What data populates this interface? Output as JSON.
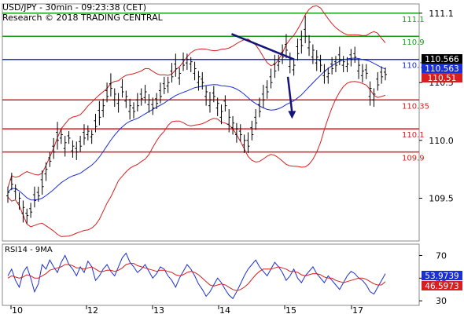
{
  "header": {
    "title": "USD/JPY - 30min - 09:23:38 (CET)",
    "copyright": "Research © 2018 TRADING CENTRAL"
  },
  "chart_data": [
    {
      "type": "line",
      "title": "",
      "ylim": [
        109.13,
        111.18
      ],
      "x_ticks": [
        "10",
        "12",
        "13",
        "14",
        "15",
        "17"
      ],
      "y_ticks": [
        {
          "value": 111.1,
          "label": "111.1"
        },
        {
          "value": 110.5,
          "label": "110.5"
        },
        {
          "value": 110.0,
          "label": "110.0"
        },
        {
          "value": 109.5,
          "label": "109.5"
        }
      ],
      "levels": [
        {
          "value": 111.1,
          "label": "111.1",
          "color": "#1a9e1a"
        },
        {
          "value": 110.9,
          "label": "110.9",
          "color": "#1a9e1a"
        },
        {
          "value": 110.7,
          "label": "110.7",
          "color": "#1a2fd6"
        },
        {
          "value": 110.35,
          "label": "110.35",
          "color": "#d81e1e"
        },
        {
          "value": 110.1,
          "label": "110.1",
          "color": "#d81e1e"
        },
        {
          "value": 109.9,
          "label": "109.9",
          "color": "#d81e1e"
        }
      ],
      "price_tags": [
        {
          "value": 110.566,
          "label": "110.566",
          "bg": "#000000",
          "fg": "#ffffff"
        },
        {
          "value": 110.563,
          "label": "110.563",
          "bg": "#1a2fd6",
          "fg": "#ffffff"
        },
        {
          "value": 110.51,
          "label": "110.51",
          "bg": "#d81e1e",
          "fg": "#ffffff"
        }
      ],
      "series": [
        {
          "style": "ohlc",
          "color": "#000000",
          "close": [
            109.55,
            109.62,
            109.58,
            109.5,
            109.42,
            109.35,
            109.38,
            109.48,
            109.52,
            109.6,
            109.75,
            109.82,
            109.9,
            110.0,
            110.05,
            109.98,
            110.02,
            109.95,
            109.9,
            109.95,
            110.02,
            110.08,
            110.05,
            110.12,
            110.2,
            110.3,
            110.38,
            110.45,
            110.4,
            110.35,
            110.42,
            110.38,
            110.3,
            110.25,
            110.3,
            110.36,
            110.42,
            110.35,
            110.28,
            110.32,
            110.38,
            110.45,
            110.5,
            110.55,
            110.62,
            110.58,
            110.65,
            110.7,
            110.68,
            110.62,
            110.55,
            110.5,
            110.42,
            110.35,
            110.38,
            110.32,
            110.25,
            110.3,
            110.2,
            110.15,
            110.1,
            110.05,
            110.0,
            109.95,
            110.05,
            110.15,
            110.25,
            110.35,
            110.42,
            110.5,
            110.6,
            110.68,
            110.72,
            110.78,
            110.7,
            110.65,
            110.75,
            110.82,
            110.9,
            110.85,
            110.78,
            110.72,
            110.65,
            110.6,
            110.58,
            110.62,
            110.65,
            110.7,
            110.68,
            110.66,
            110.7,
            110.72,
            110.65,
            110.6,
            110.58,
            110.45,
            110.4,
            110.48,
            110.55,
            110.57
          ],
          "open_offset": [
            -0.03,
            0.04,
            -0.02,
            -0.04,
            -0.05,
            0.02,
            0.03,
            0.05,
            0.03,
            0.06,
            -0.04,
            0.03,
            0.05,
            0.07,
            -0.03,
            -0.05,
            0.02,
            -0.04,
            0.03,
            0.04,
            0.05,
            -0.03,
            -0.02,
            0.05,
            0.06,
            -0.04,
            0.05,
            0.04,
            -0.05,
            -0.03,
            0.04,
            -0.04,
            -0.05,
            0.03,
            0.05,
            0.04,
            -0.05,
            -0.04,
            0.03,
            0.04,
            0.05,
            0.04,
            -0.03,
            0.05,
            0.04,
            -0.04,
            0.05,
            -0.03,
            -0.02,
            -0.04,
            -0.05,
            0.03,
            -0.04,
            -0.05,
            0.03,
            -0.04,
            -0.05,
            0.04,
            -0.06,
            -0.04,
            -0.05,
            0.03,
            -0.04,
            0.05,
            0.06,
            0.05,
            0.06,
            0.05,
            0.04,
            0.05,
            0.06,
            -0.03,
            0.04,
            0.05,
            -0.06,
            -0.04,
            0.06,
            0.05,
            0.06,
            -0.05,
            -0.06,
            -0.05,
            0.04,
            -0.04,
            -0.03,
            0.04,
            0.03,
            0.04,
            -0.03,
            -0.02,
            0.04,
            0.03,
            -0.05,
            -0.04,
            0.03,
            -0.07,
            -0.05,
            0.05,
            0.04,
            0.02
          ],
          "range_above": [
            0.05,
            0.06,
            0.04,
            0.05,
            0.06,
            0.04,
            0.05,
            0.07,
            0.05,
            0.08,
            0.06,
            0.05,
            0.07,
            0.09,
            0.05,
            0.06,
            0.04,
            0.05,
            0.06,
            0.05,
            0.07,
            0.05,
            0.04,
            0.06,
            0.08,
            0.06,
            0.07,
            0.09,
            0.05,
            0.06,
            0.07,
            0.05,
            0.06,
            0.05,
            0.06,
            0.05,
            0.06,
            0.05,
            0.06,
            0.05,
            0.07,
            0.06,
            0.05,
            0.07,
            0.09,
            0.05,
            0.06,
            0.05,
            0.04,
            0.06,
            0.05,
            0.06,
            0.05,
            0.07,
            0.06,
            0.05,
            0.06,
            0.05,
            0.07,
            0.06,
            0.05,
            0.06,
            0.05,
            0.07,
            0.06,
            0.07,
            0.06,
            0.08,
            0.06,
            0.07,
            0.08,
            0.06,
            0.07,
            0.09,
            0.06,
            0.05,
            0.07,
            0.08,
            0.12,
            0.06,
            0.05,
            0.06,
            0.05,
            0.06,
            0.05,
            0.06,
            0.05,
            0.07,
            0.05,
            0.06,
            0.05,
            0.06,
            0.05,
            0.06,
            0.05,
            0.06,
            0.05,
            0.06,
            0.05,
            0.04
          ],
          "range_below": [
            0.06,
            0.05,
            0.07,
            0.06,
            0.08,
            0.07,
            0.05,
            0.06,
            0.05,
            0.07,
            0.06,
            0.05,
            0.06,
            0.08,
            0.05,
            0.07,
            0.05,
            0.06,
            0.07,
            0.05,
            0.06,
            0.05,
            0.06,
            0.05,
            0.07,
            0.06,
            0.05,
            0.07,
            0.06,
            0.08,
            0.05,
            0.06,
            0.07,
            0.06,
            0.05,
            0.06,
            0.05,
            0.07,
            0.06,
            0.05,
            0.06,
            0.05,
            0.06,
            0.05,
            0.07,
            0.06,
            0.05,
            0.06,
            0.07,
            0.06,
            0.07,
            0.06,
            0.08,
            0.06,
            0.05,
            0.07,
            0.06,
            0.05,
            0.07,
            0.06,
            0.07,
            0.06,
            0.07,
            0.06,
            0.05,
            0.06,
            0.05,
            0.07,
            0.06,
            0.05,
            0.06,
            0.05,
            0.06,
            0.07,
            0.06,
            0.05,
            0.06,
            0.07,
            0.06,
            0.07,
            0.06,
            0.07,
            0.06,
            0.07,
            0.06,
            0.05,
            0.06,
            0.05,
            0.06,
            0.05,
            0.06,
            0.05,
            0.07,
            0.06,
            0.05,
            0.08,
            0.06,
            0.05,
            0.06,
            0.05
          ]
        }
      ],
      "trendline": {
        "from": [
          0.55,
          110.92
        ],
        "to": [
          0.7,
          110.7
        ],
        "color": "#14147a"
      },
      "arrow": {
        "from": [
          0.685,
          110.55
        ],
        "to": [
          0.695,
          110.2
        ],
        "color": "#14147a"
      }
    },
    {
      "type": "line",
      "title": "RSI14 - 9MA",
      "ylim": [
        26,
        80
      ],
      "y_ticks": [
        {
          "value": 70,
          "label": "70"
        },
        {
          "value": 50,
          "label": "50"
        },
        {
          "value": 30,
          "label": "30"
        }
      ],
      "price_tags": [
        {
          "value": 53.9739,
          "label": "53.9739",
          "bg": "#1a2fd6",
          "fg": "#ffffff"
        },
        {
          "value": 46.5973,
          "label": "46.5973",
          "bg": "#d81e1e",
          "fg": "#ffffff"
        }
      ],
      "series": [
        {
          "style": "rsi",
          "color": "#1a2fd6",
          "values": [
            52,
            58,
            48,
            42,
            55,
            60,
            50,
            38,
            45,
            62,
            58,
            66,
            60,
            55,
            64,
            70,
            62,
            58,
            52,
            60,
            55,
            65,
            60,
            48,
            52,
            58,
            62,
            56,
            52,
            60,
            68,
            72,
            64,
            60,
            55,
            58,
            62,
            56,
            50,
            54,
            60,
            58,
            52,
            48,
            42,
            50,
            56,
            62,
            58,
            52,
            45,
            40,
            34,
            38,
            44,
            50,
            46,
            40,
            35,
            32,
            38,
            45,
            52,
            58,
            62,
            66,
            60,
            56,
            52,
            58,
            64,
            60,
            55,
            48,
            52,
            58,
            50,
            46,
            52,
            56,
            60,
            54,
            50,
            46,
            52,
            48,
            44,
            40,
            46,
            52,
            56,
            54,
            50,
            48,
            44,
            38,
            36,
            42,
            48,
            54
          ]
        },
        {
          "style": "ma",
          "color": "#d81e1e",
          "values": [
            50,
            52,
            51,
            50,
            51,
            53,
            52,
            50,
            50,
            52,
            54,
            57,
            58,
            59,
            60,
            62,
            62,
            61,
            59,
            59,
            58,
            59,
            60,
            58,
            56,
            56,
            57,
            57,
            56,
            57,
            59,
            62,
            63,
            63,
            61,
            60,
            59,
            58,
            57,
            56,
            57,
            57,
            56,
            55,
            53,
            52,
            53,
            55,
            56,
            55,
            53,
            50,
            47,
            44,
            43,
            44,
            45,
            44,
            42,
            40,
            39,
            40,
            42,
            45,
            49,
            53,
            56,
            58,
            58,
            58,
            59,
            60,
            59,
            58,
            56,
            56,
            55,
            53,
            52,
            53,
            54,
            54,
            53,
            51,
            50,
            50,
            48,
            47,
            46,
            47,
            48,
            49,
            50,
            50,
            49,
            47,
            45,
            44,
            44,
            47
          ]
        }
      ]
    }
  ]
}
